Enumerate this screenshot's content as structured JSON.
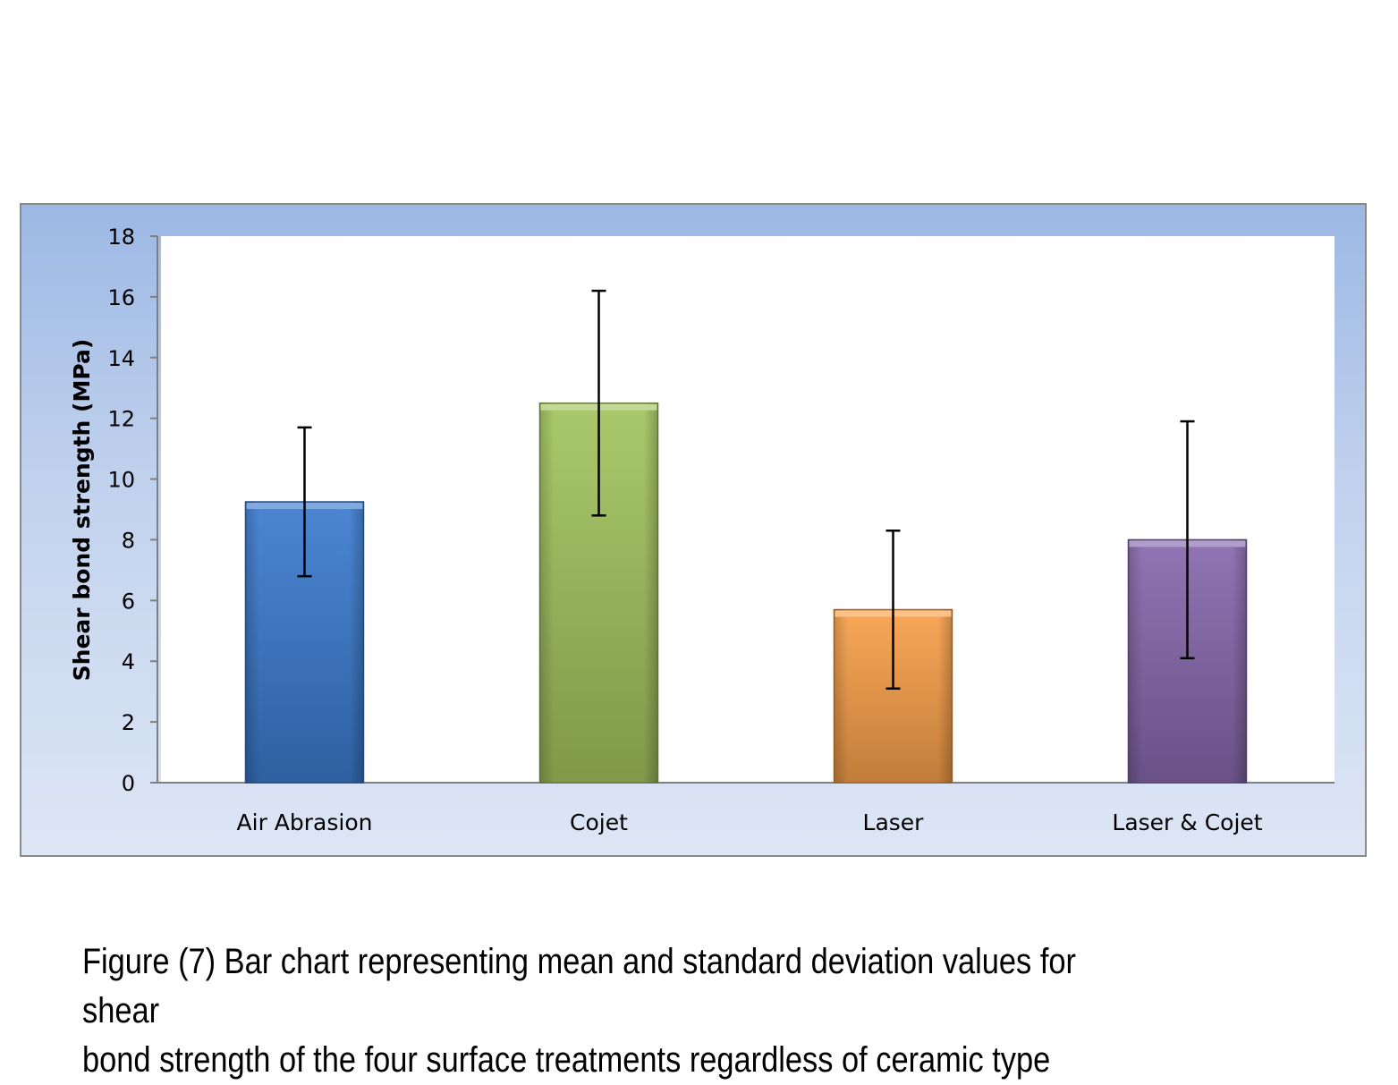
{
  "chart_data": {
    "type": "bar",
    "title": "",
    "xlabel": "",
    "ylabel": "Shear bond strength (MPa)",
    "ylim": [
      0,
      18
    ],
    "yticks": [
      0,
      2,
      4,
      6,
      8,
      10,
      12,
      14,
      16,
      18
    ],
    "categories": [
      "Air Abrasion",
      "Cojet",
      "Laser",
      "Laser & Cojet"
    ],
    "values": [
      9.25,
      12.5,
      5.7,
      8.0
    ],
    "error_bars": [
      {
        "low": 6.8,
        "high": 11.7
      },
      {
        "low": 8.8,
        "high": 16.2
      },
      {
        "low": 3.1,
        "high": 8.3
      },
      {
        "low": 4.1,
        "high": 11.9
      }
    ],
    "colors": [
      "#3b7bcf",
      "#a3c45e",
      "#f9a04a",
      "#8768ad"
    ],
    "grid": false,
    "legend": "none"
  },
  "caption": {
    "line1": "Figure (7) Bar chart representing mean and standard deviation values for shear",
    "line2": "bond strength of the four surface treatments regardless of ceramic type"
  }
}
